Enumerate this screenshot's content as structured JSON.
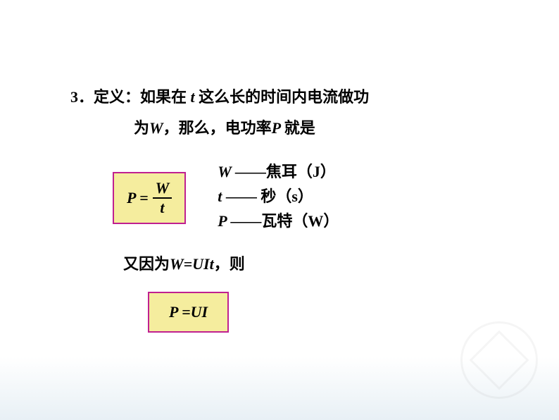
{
  "definition": {
    "number": "3",
    "label": "．定义：",
    "text1a": "如果在 ",
    "var_t1": "t ",
    "text1b": "这么长的时间内电流做功",
    "text2a": "为",
    "var_W1": "W",
    "text2b": "，那么，电功率",
    "var_P1": "P ",
    "text2c": "就是"
  },
  "formula1": {
    "lhs": "P =",
    "num": "W",
    "den": "t"
  },
  "units": {
    "row1_var": "W ",
    "row1_dash": "——",
    "row1_unit": "焦耳（J）",
    "row2_var": "t  ",
    "row2_dash": "—— ",
    "row2_unit": "秒（s）",
    "row3_var": "P  ",
    "row3_dash": "——",
    "row3_unit": "瓦特（W）"
  },
  "line3": {
    "text_a": "又因为",
    "eq": "W=UIt",
    "text_b": "，则"
  },
  "formula2": {
    "text": "P =UI"
  },
  "colors": {
    "box_border": "#c02090",
    "box_fill": "#f5ed9e",
    "text": "#000000",
    "bg_bottom": "#e8f0f5"
  }
}
